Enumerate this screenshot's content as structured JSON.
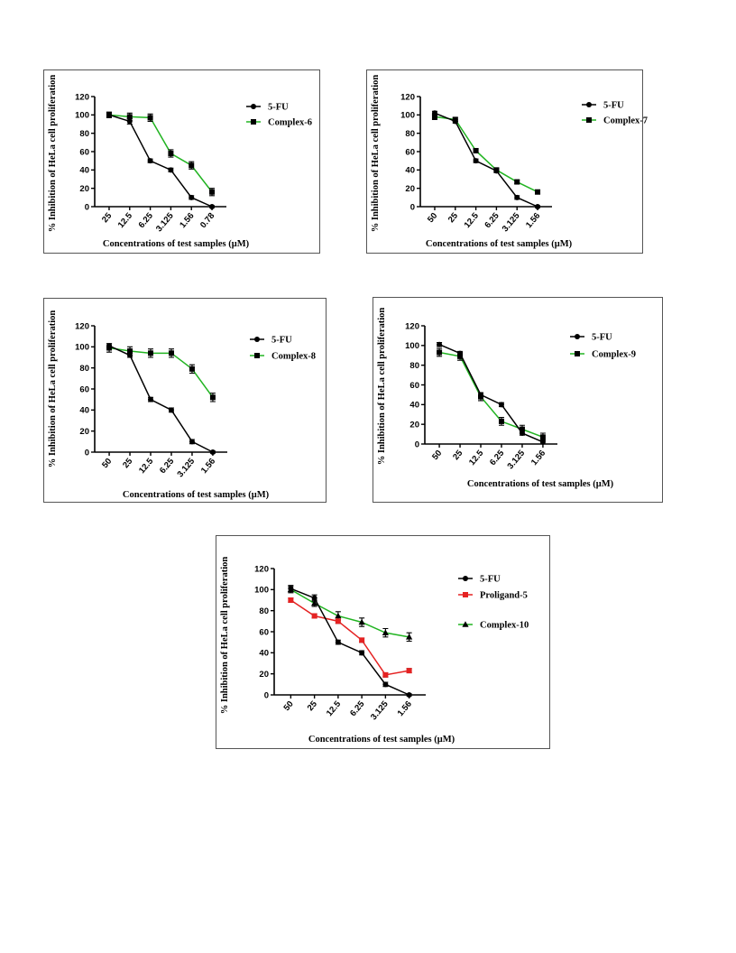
{
  "chart_data": [
    {
      "type": "line",
      "ylabel": "% Inhibition of HeLa cell proliferation",
      "xlabel": "Concentrations of test samples (μM)",
      "categories": [
        "25",
        "12.5",
        "6.25",
        "3.125",
        "1.56",
        "0.78"
      ],
      "ylim": [
        0,
        120
      ],
      "yticks": [
        "0",
        "20",
        "40",
        "60",
        "80",
        "100",
        "120"
      ],
      "legend_position": "right",
      "series": [
        {
          "name": "5-FU",
          "marker": "circle",
          "color": "#000000",
          "values": [
            100,
            93,
            50,
            40,
            10,
            0
          ],
          "errors": [
            3,
            3,
            2,
            2,
            2,
            1
          ]
        },
        {
          "name": "Complex-6",
          "marker": "square",
          "color": "#22b422",
          "values": [
            100,
            98,
            97,
            58,
            45,
            16
          ],
          "errors": [
            3,
            4,
            4,
            4,
            4,
            4
          ]
        }
      ]
    },
    {
      "type": "line",
      "ylabel": "% Inhibition of HeLa cell proliferation",
      "xlabel": "Concentrations of test samples (μM)",
      "categories": [
        "50",
        "25",
        "12.5",
        "6.25",
        "3.125",
        "1.56"
      ],
      "ylim": [
        0,
        120
      ],
      "yticks": [
        "0",
        "20",
        "40",
        "60",
        "80",
        "100",
        "120"
      ],
      "legend_position": "right",
      "series": [
        {
          "name": "5-FU",
          "marker": "circle",
          "color": "#000000",
          "values": [
            102,
            93,
            50,
            39,
            10,
            0
          ],
          "errors": [
            2,
            2,
            2,
            2,
            2,
            1
          ]
        },
        {
          "name": "Complex-7",
          "marker": "square",
          "color": "#22b422",
          "values": [
            98,
            95,
            61,
            40,
            27,
            16
          ],
          "errors": [
            3,
            2,
            2,
            2,
            2,
            2
          ]
        }
      ]
    },
    {
      "type": "line",
      "ylabel": "% Inhibition of HeLa cell proliferation",
      "xlabel": "Concentrations of test samples (μM)",
      "categories": [
        "50",
        "25",
        "12.5",
        "6.25",
        "3.125",
        "1.56"
      ],
      "ylim": [
        0,
        120
      ],
      "yticks": [
        "0",
        "20",
        "40",
        "60",
        "80",
        "100",
        "120"
      ],
      "legend_position": "right",
      "series": [
        {
          "name": "5-FU",
          "marker": "circle",
          "color": "#000000",
          "values": [
            101,
            92,
            50,
            40,
            10,
            0
          ],
          "errors": [
            2,
            2,
            2,
            2,
            2,
            1
          ]
        },
        {
          "name": "Complex-8",
          "marker": "square",
          "color": "#22b422",
          "values": [
            99,
            96,
            94,
            94,
            79,
            52
          ],
          "errors": [
            4,
            4,
            4,
            4,
            4,
            4
          ]
        }
      ]
    },
    {
      "type": "line",
      "ylabel": "% Inhibition of HeLa cell proliferation",
      "xlabel": "Concentrations of test samples (μM)",
      "categories": [
        "50",
        "25",
        "12.5",
        "6.25",
        "3.125",
        "1.56"
      ],
      "ylim": [
        0,
        120
      ],
      "yticks": [
        "0",
        "20",
        "40",
        "60",
        "80",
        "100",
        "120"
      ],
      "legend_position": "right",
      "series": [
        {
          "name": "5-FU",
          "marker": "circle",
          "color": "#000000",
          "values": [
            101,
            92,
            50,
            40,
            11,
            2
          ],
          "errors": [
            2,
            2,
            2,
            2,
            2,
            2
          ]
        },
        {
          "name": "Complex-9",
          "marker": "square",
          "color": "#22b422",
          "values": [
            93,
            89,
            48,
            23,
            15,
            7
          ],
          "errors": [
            4,
            4,
            4,
            4,
            4,
            4
          ]
        }
      ]
    },
    {
      "type": "line",
      "ylabel": "% Inhibition of HeLa cell proliferation",
      "xlabel": "Concentrations of test samples (μM)",
      "categories": [
        "50",
        "25",
        "12.5",
        "6.25",
        "3.125",
        "1.56"
      ],
      "ylim": [
        0,
        120
      ],
      "yticks": [
        "0",
        "20",
        "40",
        "60",
        "80",
        "100",
        "120"
      ],
      "legend_position": "right",
      "series": [
        {
          "name": "5-FU",
          "marker": "circle",
          "color": "#000000",
          "values": [
            101,
            92,
            50,
            40,
            10,
            0
          ],
          "errors": [
            3,
            3,
            2,
            2,
            2,
            1
          ]
        },
        {
          "name": "Proligand-5",
          "marker": "square",
          "color": "#e52222",
          "values": [
            90,
            75,
            70,
            52,
            19,
            23
          ],
          "errors": [
            2,
            2,
            2,
            2,
            2,
            2
          ]
        },
        {
          "name": "Complex-10",
          "marker": "triangle",
          "color": "#22b422",
          "values": [
            100,
            87,
            75,
            69,
            59,
            55
          ],
          "errors": [
            3,
            3,
            4,
            4,
            4,
            4
          ]
        }
      ]
    }
  ]
}
